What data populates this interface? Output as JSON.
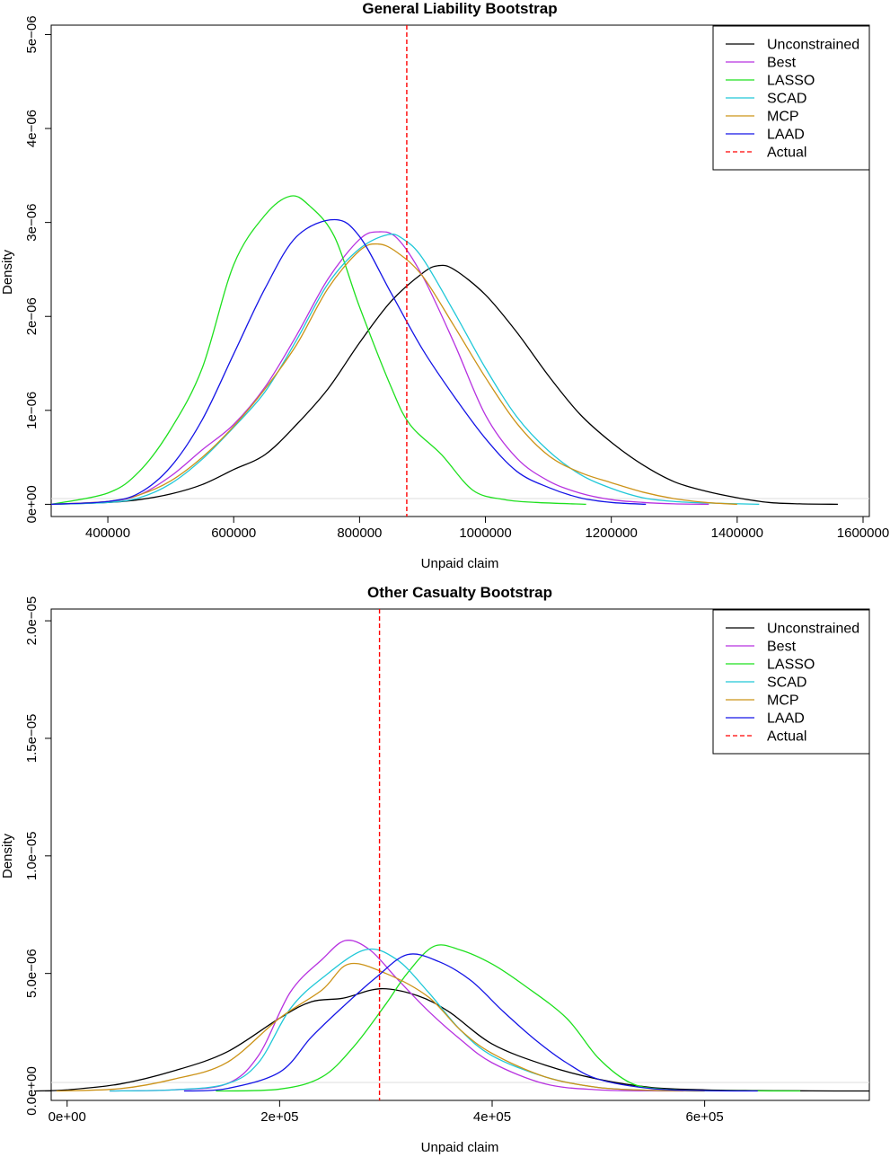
{
  "chart_data": [
    {
      "type": "line",
      "title": "General Liability Bootstrap",
      "xlabel": "Unpaid claim",
      "ylabel": "Density",
      "xlim": [
        310000,
        1610000
      ],
      "ylim": [
        -1.3e-07,
        5.1e-06
      ],
      "xticks": [
        400000,
        600000,
        800000,
        1000000,
        1200000,
        1400000,
        1600000
      ],
      "xtick_labels": [
        "400000",
        "600000",
        "800000",
        "1000000",
        "1200000",
        "1400000",
        "1600000"
      ],
      "yticks": [
        0,
        1e-06,
        2e-06,
        3e-06,
        4e-06,
        5e-06
      ],
      "ytick_labels": [
        "0e+00",
        "1e−06",
        "2e−06",
        "3e−06",
        "4e−06",
        "5e−06"
      ],
      "legend_position": "top-right",
      "legend": [
        {
          "label": "Unconstrained",
          "color": "#000000",
          "dash": false
        },
        {
          "label": "Best",
          "color": "#b732e0",
          "dash": false
        },
        {
          "label": "LASSO",
          "color": "#1ee01e",
          "dash": false
        },
        {
          "label": "SCAD",
          "color": "#20c8d8",
          "dash": false
        },
        {
          "label": "MCP",
          "color": "#cc9318",
          "dash": false
        },
        {
          "label": "LAAD",
          "color": "#1414e6",
          "dash": false
        },
        {
          "label": "Actual",
          "color": "#ff0000",
          "dash": true
        }
      ],
      "actual_x": 875000,
      "series": [
        {
          "name": "Unconstrained",
          "color": "#000000",
          "x": [
            310000,
            400000,
            450000,
            500000,
            550000,
            600000,
            650000,
            700000,
            750000,
            800000,
            850000,
            900000,
            925000,
            950000,
            1000000,
            1050000,
            1100000,
            1150000,
            1200000,
            1250000,
            1300000,
            1350000,
            1400000,
            1450000,
            1500000,
            1560000
          ],
          "y": [
            0,
            2e-08,
            5e-08,
            1.1e-07,
            2.1e-07,
            3.7e-07,
            5.3e-07,
            8.5e-07,
            1.23e-06,
            1.72e-06,
            2.16e-06,
            2.46e-06,
            2.54e-06,
            2.5e-06,
            2.23e-06,
            1.83e-06,
            1.37e-06,
            9.6e-07,
            6.6e-07,
            4.2e-07,
            2.4e-07,
            1.4e-07,
            7e-08,
            2e-08,
            5e-09,
            0
          ]
        },
        {
          "name": "Best",
          "color": "#b732e0",
          "x": [
            310000,
            400000,
            450000,
            500000,
            550000,
            600000,
            650000,
            700000,
            750000,
            800000,
            830000,
            860000,
            900000,
            950000,
            1000000,
            1050000,
            1100000,
            1150000,
            1200000,
            1250000,
            1300000,
            1355000
          ],
          "y": [
            0,
            3e-08,
            1e-07,
            3e-07,
            5.8e-07,
            8.5e-07,
            1.25e-06,
            1.8e-06,
            2.4e-06,
            2.82e-06,
            2.9e-06,
            2.83e-06,
            2.43e-06,
            1.72e-06,
            9.5e-07,
            4.9e-07,
            2.5e-07,
            1.2e-07,
            5e-08,
            2e-08,
            5e-09,
            0
          ]
        },
        {
          "name": "LASSO",
          "color": "#1ee01e",
          "x": [
            310000,
            400000,
            450000,
            500000,
            550000,
            600000,
            650000,
            690000,
            720000,
            760000,
            800000,
            850000,
            880000,
            930000,
            980000,
            1030000,
            1080000,
            1160000
          ],
          "y": [
            0,
            1.2e-07,
            3.5e-07,
            8e-07,
            1.45e-06,
            2.55e-06,
            3.08e-06,
            3.28e-06,
            3.18e-06,
            2.85e-06,
            2.1e-06,
            1.25e-06,
            8.5e-07,
            5.3e-07,
            1.5e-07,
            5e-08,
            2e-08,
            0
          ]
        },
        {
          "name": "SCAD",
          "color": "#20c8d8",
          "x": [
            310000,
            400000,
            450000,
            500000,
            550000,
            600000,
            650000,
            700000,
            750000,
            800000,
            845000,
            870000,
            900000,
            950000,
            1000000,
            1050000,
            1100000,
            1150000,
            1200000,
            1250000,
            1300000,
            1350000,
            1435000
          ],
          "y": [
            0,
            2e-08,
            7e-08,
            2.2e-07,
            4.8e-07,
            8.2e-07,
            1.2e-06,
            1.75e-06,
            2.35e-06,
            2.72e-06,
            2.87e-06,
            2.82e-06,
            2.62e-06,
            2.05e-06,
            1.45e-06,
            9.3e-07,
            5.7e-07,
            3.2e-07,
            1.7e-07,
            7e-08,
            3e-08,
            1.5e-08,
            0
          ]
        },
        {
          "name": "MCP",
          "color": "#cc9318",
          "x": [
            310000,
            400000,
            450000,
            500000,
            550000,
            600000,
            650000,
            700000,
            750000,
            800000,
            830000,
            860000,
            900000,
            950000,
            1000000,
            1050000,
            1100000,
            1150000,
            1200000,
            1250000,
            1300000,
            1350000,
            1400000
          ],
          "y": [
            0,
            3e-08,
            1e-07,
            2.5e-07,
            5e-07,
            8.3e-07,
            1.23e-06,
            1.7e-06,
            2.3e-06,
            2.7e-06,
            2.77e-06,
            2.68e-06,
            2.43e-06,
            1.9e-06,
            1.35e-06,
            8.6e-07,
            5.2e-07,
            3.4e-07,
            2.3e-07,
            1.3e-07,
            6e-08,
            2e-08,
            0
          ]
        },
        {
          "name": "LAAD",
          "color": "#1414e6",
          "x": [
            310000,
            400000,
            450000,
            500000,
            550000,
            600000,
            650000,
            700000,
            760000,
            800000,
            850000,
            900000,
            950000,
            1000000,
            1050000,
            1100000,
            1150000,
            1200000,
            1255000
          ],
          "y": [
            0,
            3e-08,
            1.2e-07,
            4e-07,
            9e-07,
            1.6e-06,
            2.3e-06,
            2.85e-06,
            3.03e-06,
            2.85e-06,
            2.25e-06,
            1.65e-06,
            1.15e-06,
            7e-07,
            3.5e-07,
            1.8e-07,
            7e-08,
            2e-08,
            0
          ]
        }
      ]
    },
    {
      "type": "line",
      "title": "Other Casualty Bootstrap",
      "xlabel": "Unpaid claim",
      "ylabel": "Density",
      "xlim": [
        -15000,
        755000
      ],
      "ylim": [
        -4e-07,
        2.05e-05
      ],
      "xticks": [
        0,
        200000,
        400000,
        600000
      ],
      "xtick_labels": [
        "0e+00",
        "2e+05",
        "4e+05",
        "6e+05"
      ],
      "yticks": [
        0,
        5e-06,
        1e-05,
        1.5e-05,
        2e-05
      ],
      "ytick_labels": [
        "0.0e+00",
        "5.0e−06",
        "1.0e−05",
        "1.5e−05",
        "2.0e−05"
      ],
      "legend_position": "top-right",
      "legend": [
        {
          "label": "Unconstrained",
          "color": "#000000",
          "dash": false
        },
        {
          "label": "Best",
          "color": "#b732e0",
          "dash": false
        },
        {
          "label": "LASSO",
          "color": "#1ee01e",
          "dash": false
        },
        {
          "label": "SCAD",
          "color": "#20c8d8",
          "dash": false
        },
        {
          "label": "MCP",
          "color": "#cc9318",
          "dash": false
        },
        {
          "label": "LAAD",
          "color": "#1414e6",
          "dash": false
        },
        {
          "label": "Actual",
          "color": "#ff0000",
          "dash": true
        }
      ],
      "actual_x": 294000,
      "series": [
        {
          "name": "Unconstrained",
          "color": "#000000",
          "x": [
            -30000,
            0,
            50000,
            100000,
            150000,
            200000,
            230000,
            260000,
            295000,
            330000,
            360000,
            400000,
            450000,
            500000,
            550000,
            600000,
            650000,
            700000,
            755000
          ],
          "y": [
            0,
            5e-08,
            3e-07,
            8.5e-07,
            1.65e-06,
            3.1e-06,
            3.8e-06,
            3.95e-06,
            4.35e-06,
            4.05e-06,
            3.35e-06,
            2e-06,
            1.1e-06,
            5e-07,
            1.5e-07,
            5e-08,
            2e-08,
            5e-09,
            0
          ]
        },
        {
          "name": "Best",
          "color": "#b732e0",
          "x": [
            40000,
            100000,
            150000,
            180000,
            210000,
            240000,
            262000,
            285000,
            310000,
            340000,
            370000,
            400000,
            450000,
            500000,
            550000,
            580000
          ],
          "y": [
            0,
            5e-08,
            3e-07,
            1.5e-06,
            4.2e-06,
            5.6e-06,
            6.4e-06,
            6e-06,
            4.8e-06,
            3.4e-06,
            2.2e-06,
            1.2e-06,
            3e-07,
            5e-08,
            5e-09,
            0
          ]
        },
        {
          "name": "LASSO",
          "color": "#1ee01e",
          "x": [
            140000,
            200000,
            240000,
            270000,
            300000,
            320000,
            345000,
            370000,
            400000,
            430000,
            470000,
            500000,
            530000,
            560000,
            600000,
            650000,
            690000
          ],
          "y": [
            0,
            8e-08,
            6e-07,
            1.9e-06,
            3.7e-06,
            5e-06,
            6.15e-06,
            6e-06,
            5.4e-06,
            4.5e-06,
            3.1e-06,
            1.4e-06,
            3.5e-07,
            8e-08,
            1.5e-08,
            5e-09,
            0
          ]
        },
        {
          "name": "SCAD",
          "color": "#20c8d8",
          "x": [
            40000,
            100000,
            150000,
            180000,
            210000,
            240000,
            280000,
            310000,
            340000,
            370000,
            400000,
            450000,
            500000,
            550000,
            600000
          ],
          "y": [
            0,
            5e-08,
            3e-07,
            1.2e-06,
            3.5e-06,
            4.8e-06,
            6e-06,
            5.6e-06,
            4.2e-06,
            2.6e-06,
            1.5e-06,
            6e-07,
            1.5e-07,
            3e-08,
            0
          ]
        },
        {
          "name": "MCP",
          "color": "#cc9318",
          "x": [
            -10000,
            50000,
            100000,
            150000,
            200000,
            240000,
            265000,
            300000,
            340000,
            370000,
            400000,
            450000,
            500000,
            550000,
            600000
          ],
          "y": [
            0,
            1e-07,
            5e-07,
            1.2e-06,
            3.1e-06,
            4.3e-06,
            5.4e-06,
            5e-06,
            4e-06,
            2.6e-06,
            1.6e-06,
            6e-07,
            1.5e-07,
            3e-08,
            0
          ]
        },
        {
          "name": "LAAD",
          "color": "#1414e6",
          "x": [
            110000,
            150000,
            200000,
            230000,
            260000,
            290000,
            320000,
            350000,
            380000,
            410000,
            440000,
            470000,
            500000,
            550000,
            600000,
            650000
          ],
          "y": [
            0,
            1e-07,
            8e-07,
            2.3e-06,
            3.6e-06,
            4.8e-06,
            5.8e-06,
            5.5e-06,
            4.7e-06,
            3.4e-06,
            2.2e-06,
            1.2e-06,
            5e-07,
            1e-07,
            1.5e-08,
            0
          ]
        }
      ]
    }
  ]
}
